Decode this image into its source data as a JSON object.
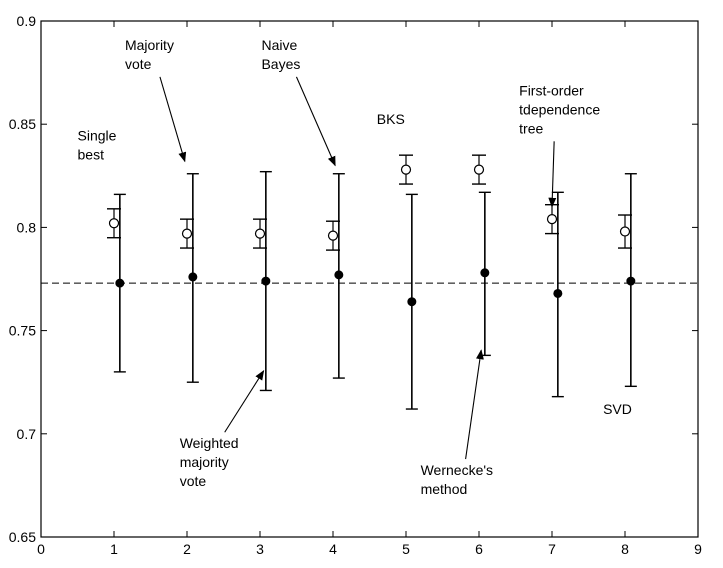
{
  "chart_data": {
    "type": "scatter",
    "title": "",
    "xlabel": "",
    "ylabel": "",
    "xlim": [
      0,
      9
    ],
    "ylim": [
      0.65,
      0.9
    ],
    "x_ticks": [
      "0",
      "1",
      "2",
      "3",
      "4",
      "5",
      "6",
      "7",
      "8",
      "9"
    ],
    "y_ticks": [
      "0.65",
      "0.7",
      "0.75",
      "0.8",
      "0.85",
      "0.9"
    ],
    "grid": false,
    "reference_line": {
      "y": 0.773,
      "style": "dashed"
    },
    "series": [
      {
        "marker": "open-circle",
        "points": [
          {
            "x": 1,
            "y": 0.802,
            "low": 0.795,
            "high": 0.809
          },
          {
            "x": 2,
            "y": 0.797,
            "low": 0.79,
            "high": 0.804
          },
          {
            "x": 3,
            "y": 0.797,
            "low": 0.79,
            "high": 0.804
          },
          {
            "x": 4,
            "y": 0.796,
            "low": 0.789,
            "high": 0.803
          },
          {
            "x": 5,
            "y": 0.828,
            "low": 0.821,
            "high": 0.835
          },
          {
            "x": 6,
            "y": 0.828,
            "low": 0.821,
            "high": 0.835
          },
          {
            "x": 7,
            "y": 0.804,
            "low": 0.797,
            "high": 0.811
          },
          {
            "x": 8,
            "y": 0.798,
            "low": 0.79,
            "high": 0.806
          }
        ]
      },
      {
        "marker": "filled-dot",
        "points": [
          {
            "x": 1.08,
            "y": 0.773,
            "low": 0.73,
            "high": 0.816
          },
          {
            "x": 2.08,
            "y": 0.776,
            "low": 0.725,
            "high": 0.826
          },
          {
            "x": 3.08,
            "y": 0.774,
            "low": 0.721,
            "high": 0.827
          },
          {
            "x": 4.08,
            "y": 0.777,
            "low": 0.727,
            "high": 0.826
          },
          {
            "x": 5.08,
            "y": 0.764,
            "low": 0.712,
            "high": 0.816
          },
          {
            "x": 6.08,
            "y": 0.778,
            "low": 0.738,
            "high": 0.817
          },
          {
            "x": 7.08,
            "y": 0.768,
            "low": 0.718,
            "high": 0.817
          },
          {
            "x": 8.08,
            "y": 0.774,
            "low": 0.723,
            "high": 0.826
          }
        ]
      }
    ],
    "annotations": [
      {
        "lines": [
          "Single",
          "best"
        ],
        "x": 0.5,
        "y": 0.842
      },
      {
        "lines": [
          "Majority",
          "vote"
        ],
        "x": 1.15,
        "y": 0.886,
        "arrow_to": [
          1.97,
          0.832
        ]
      },
      {
        "lines": [
          "Naive",
          "Bayes"
        ],
        "x": 3.02,
        "y": 0.886,
        "arrow_to": [
          4.03,
          0.83
        ]
      },
      {
        "lines": [
          "BKS"
        ],
        "x": 4.6,
        "y": 0.85
      },
      {
        "lines": [
          "First-order",
          "tdependence",
          "tree"
        ],
        "x": 6.55,
        "y": 0.864,
        "arrow_to": [
          7.0,
          0.81
        ]
      },
      {
        "lines": [
          "Weighted",
          "majority",
          "vote"
        ],
        "x": 1.9,
        "y": 0.693,
        "arrow_to": [
          3.05,
          0.7305
        ]
      },
      {
        "lines": [
          "Wernecke's",
          "method"
        ],
        "x": 5.2,
        "y": 0.68,
        "arrow_to": [
          6.03,
          0.7405
        ]
      },
      {
        "lines": [
          "SVD"
        ],
        "x": 7.7,
        "y": 0.7095
      }
    ]
  }
}
